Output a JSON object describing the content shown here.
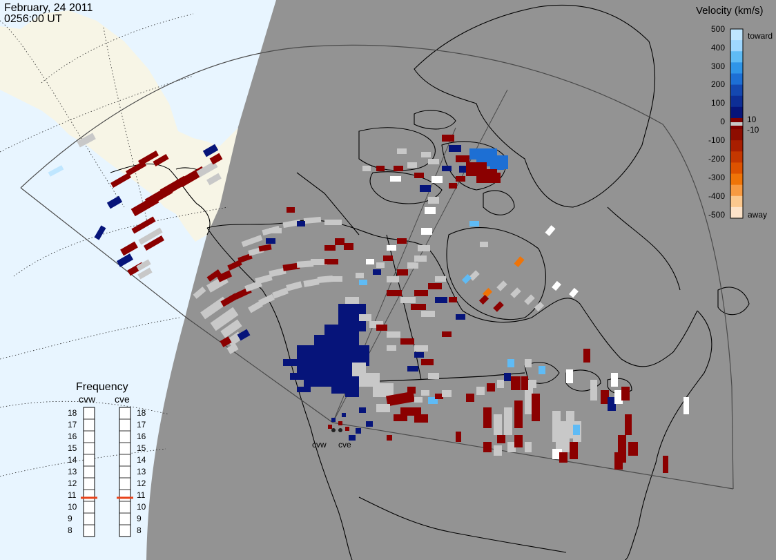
{
  "header": {
    "date": "February, 24 2011",
    "time": "0256:00 UT"
  },
  "colors": {
    "night": "#939393",
    "day_ocean": "#e8f5ff",
    "land_day": "#f7f5e6",
    "coast": "#000000",
    "fov_line": "#4a4a4a",
    "ground_scatter": "#c8c8c8",
    "freq_marker": "#e8431b"
  },
  "velocity_scale": {
    "title": "Velocity (km/s)",
    "tick_labels": [
      "500",
      "400",
      "300",
      "200",
      "100",
      "0",
      "-100",
      "-200",
      "-300",
      "-400",
      "-500"
    ],
    "near_zero_labels": [
      "10",
      "-10"
    ],
    "end_labels": {
      "top": "toward",
      "bottom": "away"
    },
    "colors": [
      "#bfe6ff",
      "#9fd7ff",
      "#5fbbf5",
      "#2f95e8",
      "#1d6fd4",
      "#1448b0",
      "#0d2e96",
      "#06147a",
      "#800000",
      "#8d0d00",
      "#a81e00",
      "#c43700",
      "#dd5200",
      "#ef7408",
      "#f79a42",
      "#fbc88e",
      "#fde3c9"
    ]
  },
  "frequency": {
    "title": "Frequency",
    "radars": [
      {
        "code": "cvw",
        "value_mhz": 10.8
      },
      {
        "code": "cve",
        "value_mhz": 10.8
      }
    ],
    "ticks": [
      "18",
      "17",
      "16",
      "15",
      "14",
      "13",
      "12",
      "11",
      "10",
      "9",
      "8"
    ]
  },
  "radars": [
    {
      "code": "cvw",
      "label": "cvw"
    },
    {
      "code": "cve",
      "label": "cve"
    }
  ]
}
